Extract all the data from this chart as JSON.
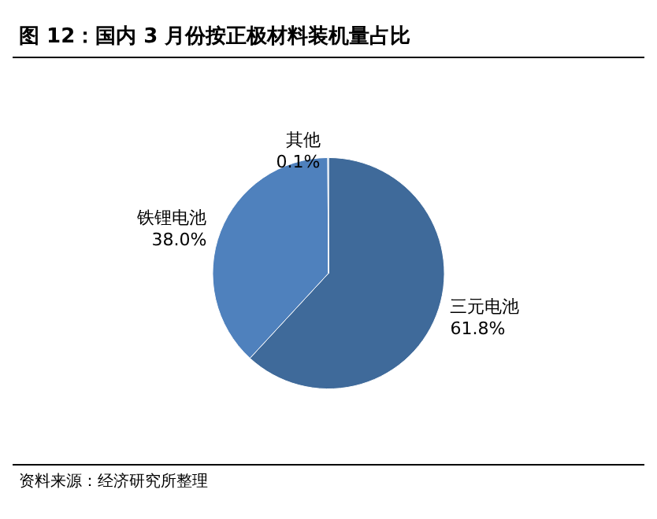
{
  "chart_data": {
    "type": "pie",
    "title": "图 12：国内 3 月份按正极材料装机量占比",
    "categories": [
      "三元电池",
      "铁锂电池",
      "其他"
    ],
    "values": [
      61.8,
      38.0,
      0.1
    ],
    "value_labels": [
      "61.8%",
      "38.0%",
      "0.1%"
    ],
    "colors": [
      "#3f6a9a",
      "#4f81bd",
      "#5a8ac4"
    ],
    "legend": false,
    "annotations": [
      "资料来源：经济研究所整理"
    ]
  }
}
